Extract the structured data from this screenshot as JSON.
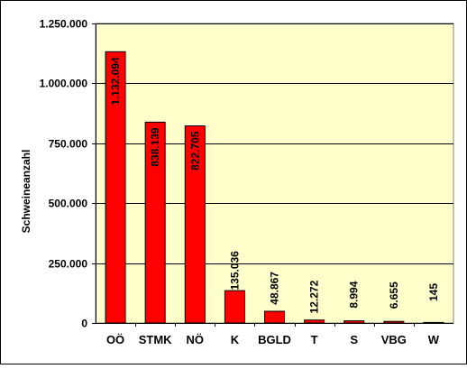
{
  "chart_data": {
    "type": "bar",
    "ylabel": "Schweineanzahl",
    "xlabel": "",
    "categories": [
      "OÖ",
      "STMK",
      "NÖ",
      "K",
      "BGLD",
      "T",
      "S",
      "VBG",
      "W"
    ],
    "values": [
      1132094,
      838139,
      822705,
      135036,
      48867,
      12272,
      8994,
      6655,
      145
    ],
    "data_labels": [
      "1.132.094",
      "838.139",
      "822.705",
      "135.036",
      "48.867",
      "12.272",
      "8.994",
      "6.655",
      "145"
    ],
    "ylim": [
      0,
      1250000
    ],
    "yticks": [
      0,
      250000,
      500000,
      750000,
      1000000,
      1250000
    ],
    "ytick_labels": [
      "0",
      "250.000",
      "500.000",
      "750.000",
      "1.000.000",
      "1.250.000"
    ],
    "grid": true,
    "legend": "none",
    "colors": {
      "bar": "#ff0000",
      "bar_border": "#000000",
      "plot_background": "#ffffcc",
      "gridline": "#000000"
    }
  }
}
